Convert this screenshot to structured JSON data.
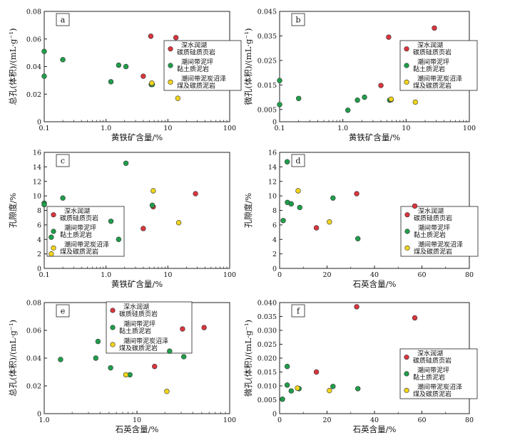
{
  "legend": {
    "items": [
      {
        "label": [
          "深水润湖",
          "碳质硅质页岩"
        ],
        "color": "#d9363e"
      },
      {
        "label": [
          "潮间带泥坪",
          "黏土质泥岩"
        ],
        "color": "#1f9e4a"
      },
      {
        "label": [
          "潮间带泥炭沼泽",
          "煤及碳质泥岩"
        ],
        "color": "#f2d51c"
      }
    ]
  },
  "colors": {
    "red": "#d9363e",
    "green": "#1f9e4a",
    "yellow": "#f2d51c"
  },
  "chart_data": [
    {
      "id": "a",
      "panel_label": "a",
      "type": "scatter",
      "xlabel": "黄铁矿含量/%",
      "ylabel": "总孔(体积)/(mL·g⁻¹)",
      "xscale": "log",
      "xlim": [
        0.1,
        100
      ],
      "xticks": [
        0.1,
        1,
        10,
        100
      ],
      "xtick_labels": [
        "0.1",
        "1.0",
        "10",
        "100"
      ],
      "ylim": [
        0,
        0.08
      ],
      "yticks": [
        0,
        0.02,
        0.04,
        0.06,
        0.08
      ],
      "ytick_labels": [
        "0",
        "0.02",
        "0.04",
        "0.06",
        "0.08"
      ],
      "legend_position": "right",
      "series": [
        {
          "group": "red",
          "points": [
            [
              5.3,
              0.062
            ],
            [
              13.5,
              0.061
            ],
            [
              4.0,
              0.033
            ]
          ]
        },
        {
          "group": "green",
          "points": [
            [
              0.1,
              0.051
            ],
            [
              0.1,
              0.033
            ],
            [
              0.2,
              0.045
            ],
            [
              1.2,
              0.029
            ],
            [
              1.6,
              0.041
            ],
            [
              2.1,
              0.04
            ],
            [
              5.4,
              0.027
            ],
            [
              5.6,
              0.027
            ]
          ]
        },
        {
          "group": "yellow",
          "points": [
            [
              14.5,
              0.017
            ],
            [
              5.5,
              0.028
            ]
          ]
        }
      ]
    },
    {
      "id": "b",
      "panel_label": "b",
      "type": "scatter",
      "xlabel": "黄铁矿含量/%",
      "ylabel": "微孔(体积)/(mL·g⁻¹)",
      "xscale": "log",
      "xlim": [
        0.1,
        100
      ],
      "xticks": [
        0.1,
        1,
        10,
        100
      ],
      "xtick_labels": [
        "0.1",
        "1.0",
        "10",
        "100"
      ],
      "ylim": [
        0,
        0.045
      ],
      "yticks": [
        0,
        0.005,
        0.015,
        0.025,
        0.035,
        0.045
      ],
      "ytick_labels": [
        "0",
        "0.005",
        "0.015",
        "0.025",
        "0.035",
        "0.045"
      ],
      "legend_position": "right",
      "series": [
        {
          "group": "red",
          "points": [
            [
              5.3,
              0.0345
            ],
            [
              28,
              0.0382
            ],
            [
              4.0,
              0.0148
            ]
          ]
        },
        {
          "group": "green",
          "points": [
            [
              0.1,
              0.0168
            ],
            [
              0.1,
              0.007
            ],
            [
              0.2,
              0.0095
            ],
            [
              1.2,
              0.0047
            ],
            [
              1.7,
              0.0088
            ],
            [
              2.2,
              0.01
            ],
            [
              5.5,
              0.0088
            ],
            [
              5.8,
              0.009
            ]
          ]
        },
        {
          "group": "yellow",
          "points": [
            [
              14,
              0.008
            ],
            [
              5.8,
              0.0092
            ]
          ]
        }
      ]
    },
    {
      "id": "c",
      "panel_label": "c",
      "type": "scatter",
      "xlabel": "黄铁矿含量/%",
      "ylabel": "孔隙度/%",
      "xscale": "log",
      "xlim": [
        0.1,
        100
      ],
      "xticks": [
        0.1,
        1,
        10,
        100
      ],
      "xtick_labels": [
        "0.1",
        "1.0",
        "10",
        "100"
      ],
      "ylim": [
        0,
        16
      ],
      "yticks": [
        0,
        2,
        4,
        6,
        8,
        10,
        12,
        14,
        16
      ],
      "ytick_labels": [
        "0",
        "2",
        "4",
        "6",
        "8",
        "10",
        "12",
        "14",
        "16"
      ],
      "legend_position": "left",
      "series": [
        {
          "group": "red",
          "points": [
            [
              28,
              10.3
            ],
            [
              5.8,
              8.5
            ],
            [
              4.0,
              5.5
            ]
          ]
        },
        {
          "group": "green",
          "points": [
            [
              0.1,
              9.0
            ],
            [
              0.1,
              8.8
            ],
            [
              0.2,
              9.7
            ],
            [
              0.13,
              4.3
            ],
            [
              1.2,
              6.5
            ],
            [
              1.6,
              4.0
            ],
            [
              2.1,
              14.5
            ],
            [
              5.6,
              8.7
            ]
          ]
        },
        {
          "group": "yellow",
          "points": [
            [
              5.8,
              10.7
            ],
            [
              15,
              6.3
            ],
            [
              0.13,
              2.0
            ]
          ]
        }
      ]
    },
    {
      "id": "d",
      "panel_label": "d",
      "type": "scatter",
      "xlabel": "石英含量/%",
      "ylabel": "孔隙度/%",
      "xscale": "linear",
      "xlim": [
        0,
        80
      ],
      "xticks": [
        0,
        20,
        40,
        60,
        80
      ],
      "xtick_labels": [
        "0",
        "20",
        "40",
        "60",
        "80"
      ],
      "ylim": [
        0,
        16
      ],
      "yticks": [
        0,
        2,
        4,
        6,
        8,
        10,
        12,
        14,
        16
      ],
      "ytick_labels": [
        "0",
        "2",
        "4",
        "6",
        "8",
        "10",
        "12",
        "14",
        "16"
      ],
      "legend_position": "right",
      "series": [
        {
          "group": "red",
          "points": [
            [
              32.5,
              10.3
            ],
            [
              57,
              8.6
            ],
            [
              15.5,
              5.6
            ]
          ]
        },
        {
          "group": "green",
          "points": [
            [
              3.2,
              14.7
            ],
            [
              1.5,
              6.6
            ],
            [
              3.3,
              9.1
            ],
            [
              4.9,
              8.9
            ],
            [
              8.5,
              8.4
            ],
            [
              22.5,
              9.7
            ],
            [
              33,
              4.1
            ]
          ]
        },
        {
          "group": "yellow",
          "points": [
            [
              7.8,
              10.7
            ],
            [
              21,
              6.4
            ]
          ]
        }
      ]
    },
    {
      "id": "e",
      "panel_label": "e",
      "type": "scatter",
      "xlabel": "石英含量/%",
      "ylabel": "总孔(体积)/(mL·g⁻¹)",
      "xscale": "log",
      "xlim": [
        1,
        100
      ],
      "xticks": [
        1,
        10,
        100
      ],
      "xtick_labels": [
        "1.0",
        "10",
        "100"
      ],
      "ylim": [
        0,
        0.08
      ],
      "yticks": [
        0,
        0.02,
        0.04,
        0.06,
        0.08
      ],
      "ytick_labels": [
        "0",
        "0.02",
        "0.04",
        "0.06",
        "0.08"
      ],
      "legend_position": "top",
      "series": [
        {
          "group": "red",
          "points": [
            [
              31,
              0.061
            ],
            [
              53,
              0.062
            ],
            [
              15.5,
              0.034
            ]
          ]
        },
        {
          "group": "green",
          "points": [
            [
              1.5,
              0.039
            ],
            [
              3.6,
              0.04
            ],
            [
              3.8,
              0.052
            ],
            [
              5.2,
              0.033
            ],
            [
              8.4,
              0.028
            ],
            [
              22.5,
              0.045
            ],
            [
              32,
              0.041
            ]
          ]
        },
        {
          "group": "yellow",
          "points": [
            [
              7.6,
              0.028
            ],
            [
              21,
              0.016
            ]
          ]
        }
      ]
    },
    {
      "id": "f",
      "panel_label": "f",
      "type": "scatter",
      "xlabel": "石英含量/%",
      "ylabel": "微孔(体积)/(mL·g⁻¹)",
      "xscale": "linear",
      "xlim": [
        0,
        80
      ],
      "xticks": [
        0,
        20,
        40,
        60,
        80
      ],
      "xtick_labels": [
        "0",
        "20",
        "40",
        "60",
        "80"
      ],
      "ylim": [
        0,
        0.04
      ],
      "yticks": [
        0,
        0.005,
        0.01,
        0.015,
        0.02,
        0.025,
        0.03,
        0.035,
        0.04
      ],
      "ytick_labels": [
        "0",
        "0.005",
        "0.010",
        "0.015",
        "0.020",
        "0.025",
        "0.030",
        "0.035",
        "0.040"
      ],
      "legend_position": "right",
      "series": [
        {
          "group": "red",
          "points": [
            [
              32.5,
              0.0385
            ],
            [
              57,
              0.0345
            ],
            [
              15.5,
              0.015
            ]
          ]
        },
        {
          "group": "green",
          "points": [
            [
              3.2,
              0.017
            ],
            [
              1.2,
              0.0052
            ],
            [
              3.2,
              0.0103
            ],
            [
              4.9,
              0.0082
            ],
            [
              8.2,
              0.009
            ],
            [
              22.5,
              0.0098
            ],
            [
              33,
              0.009
            ]
          ]
        },
        {
          "group": "yellow",
          "points": [
            [
              7.5,
              0.0092
            ],
            [
              21,
              0.0083
            ]
          ]
        }
      ]
    }
  ]
}
